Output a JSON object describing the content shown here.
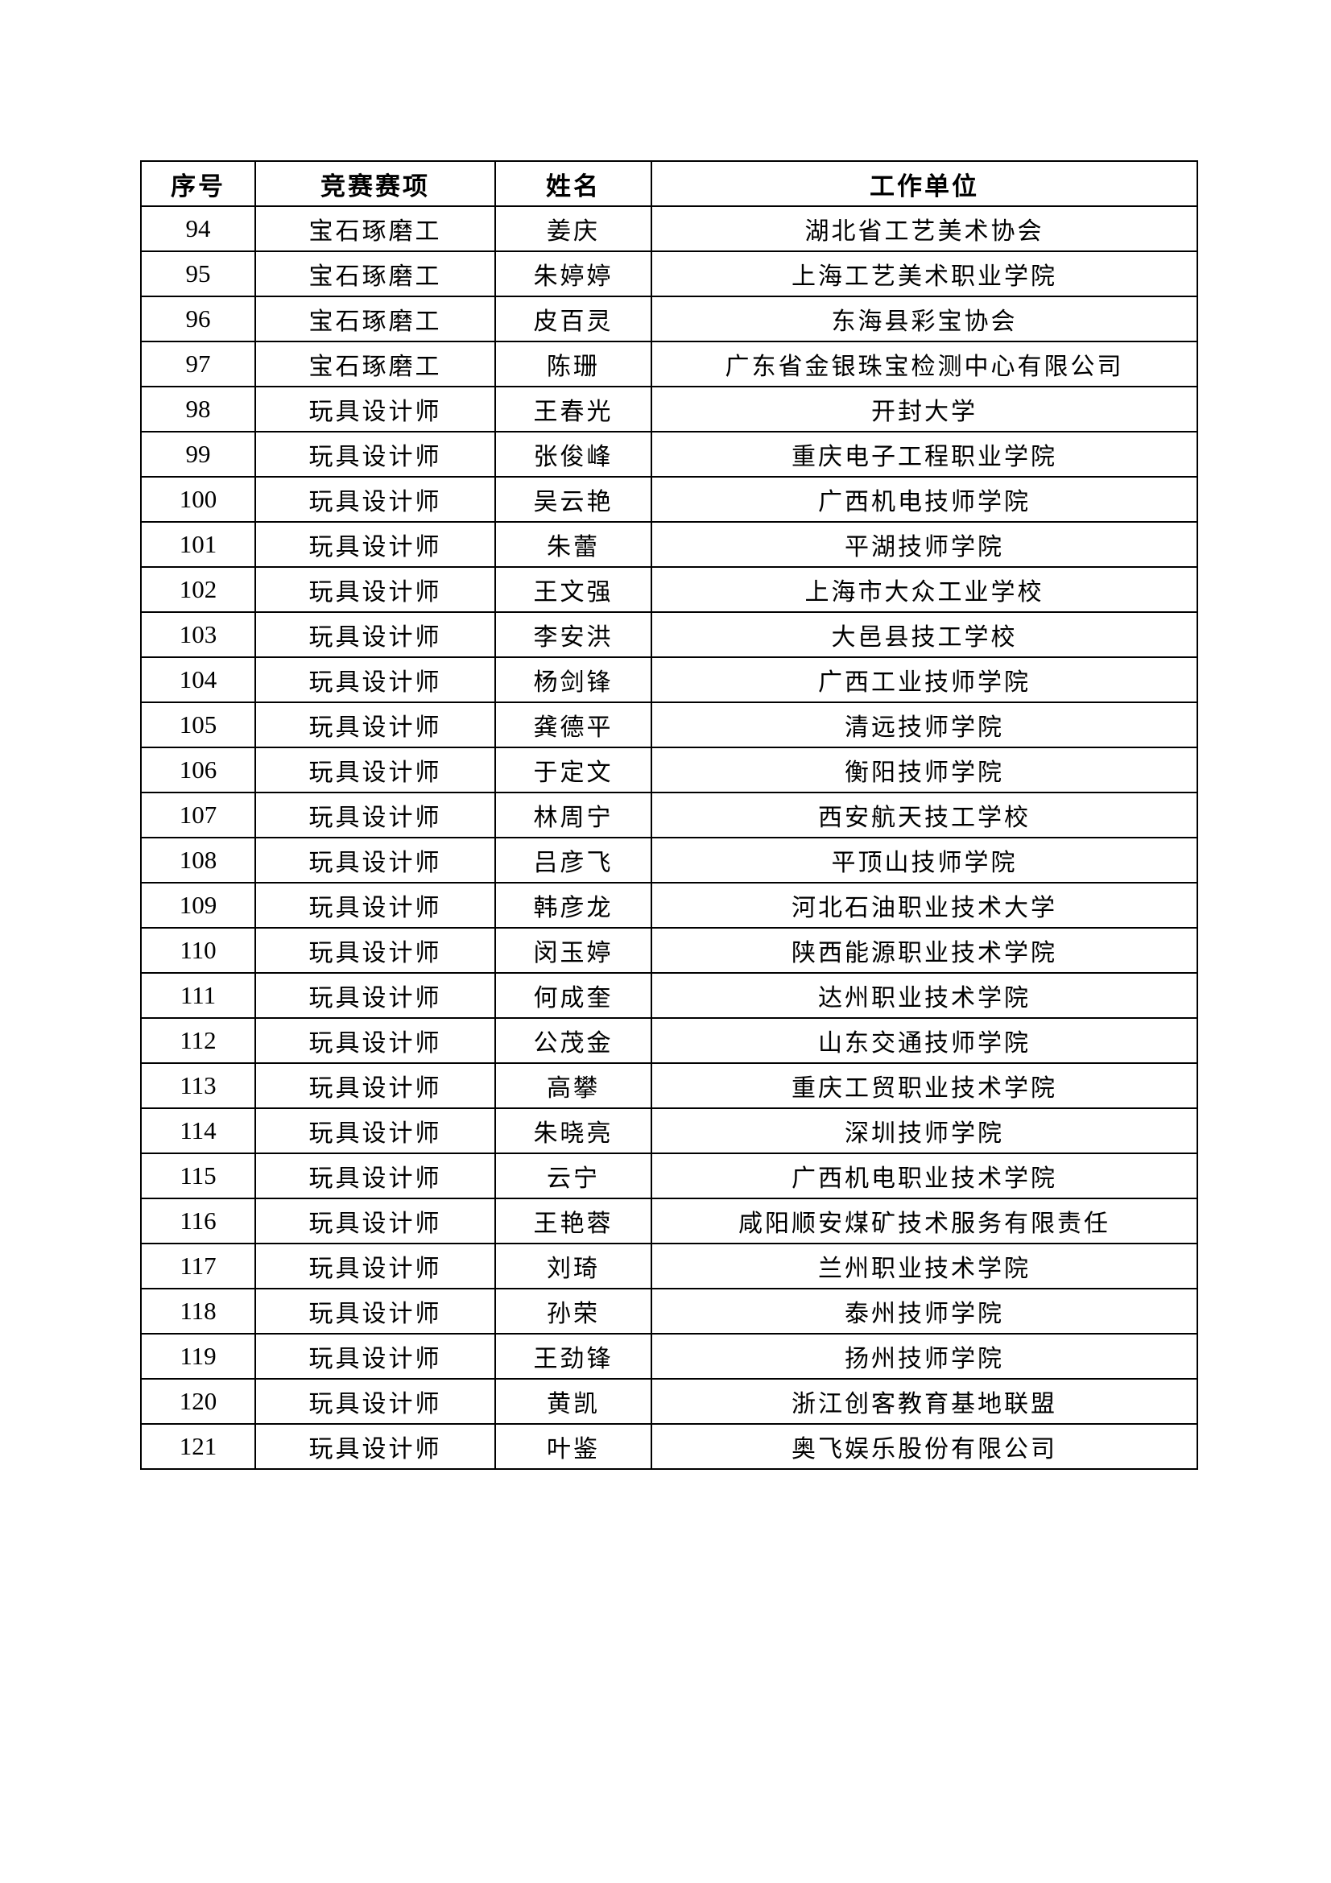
{
  "table": {
    "headers": [
      "序号",
      "竞赛赛项",
      "姓名",
      "工作单位"
    ],
    "rows": [
      [
        "94",
        "宝石琢磨工",
        "姜庆",
        "湖北省工艺美术协会"
      ],
      [
        "95",
        "宝石琢磨工",
        "朱婷婷",
        "上海工艺美术职业学院"
      ],
      [
        "96",
        "宝石琢磨工",
        "皮百灵",
        "东海县彩宝协会"
      ],
      [
        "97",
        "宝石琢磨工",
        "陈珊",
        "广东省金银珠宝检测中心有限公司"
      ],
      [
        "98",
        "玩具设计师",
        "王春光",
        "开封大学"
      ],
      [
        "99",
        "玩具设计师",
        "张俊峰",
        "重庆电子工程职业学院"
      ],
      [
        "100",
        "玩具设计师",
        "吴云艳",
        "广西机电技师学院"
      ],
      [
        "101",
        "玩具设计师",
        "朱蕾",
        "平湖技师学院"
      ],
      [
        "102",
        "玩具设计师",
        "王文强",
        "上海市大众工业学校"
      ],
      [
        "103",
        "玩具设计师",
        "李安洪",
        "大邑县技工学校"
      ],
      [
        "104",
        "玩具设计师",
        "杨剑锋",
        "广西工业技师学院"
      ],
      [
        "105",
        "玩具设计师",
        "龚德平",
        "清远技师学院"
      ],
      [
        "106",
        "玩具设计师",
        "于定文",
        "衡阳技师学院"
      ],
      [
        "107",
        "玩具设计师",
        "林周宁",
        "西安航天技工学校"
      ],
      [
        "108",
        "玩具设计师",
        "吕彦飞",
        "平顶山技师学院"
      ],
      [
        "109",
        "玩具设计师",
        "韩彦龙",
        "河北石油职业技术大学"
      ],
      [
        "110",
        "玩具设计师",
        "闵玉婷",
        "陕西能源职业技术学院"
      ],
      [
        "111",
        "玩具设计师",
        "何成奎",
        "达州职业技术学院"
      ],
      [
        "112",
        "玩具设计师",
        "公茂金",
        "山东交通技师学院"
      ],
      [
        "113",
        "玩具设计师",
        "高攀",
        "重庆工贸职业技术学院"
      ],
      [
        "114",
        "玩具设计师",
        "朱晓亮",
        "深圳技师学院"
      ],
      [
        "115",
        "玩具设计师",
        "云宁",
        "广西机电职业技术学院"
      ],
      [
        "116",
        "玩具设计师",
        "王艳蓉",
        "咸阳顺安煤矿技术服务有限责任"
      ],
      [
        "117",
        "玩具设计师",
        "刘琦",
        "兰州职业技术学院"
      ],
      [
        "118",
        "玩具设计师",
        "孙荣",
        "泰州技师学院"
      ],
      [
        "119",
        "玩具设计师",
        "王劲锋",
        "扬州技师学院"
      ],
      [
        "120",
        "玩具设计师",
        "黄凯",
        "浙江创客教育基地联盟"
      ],
      [
        "121",
        "玩具设计师",
        "叶鉴",
        "奥飞娱乐股份有限公司"
      ]
    ]
  }
}
